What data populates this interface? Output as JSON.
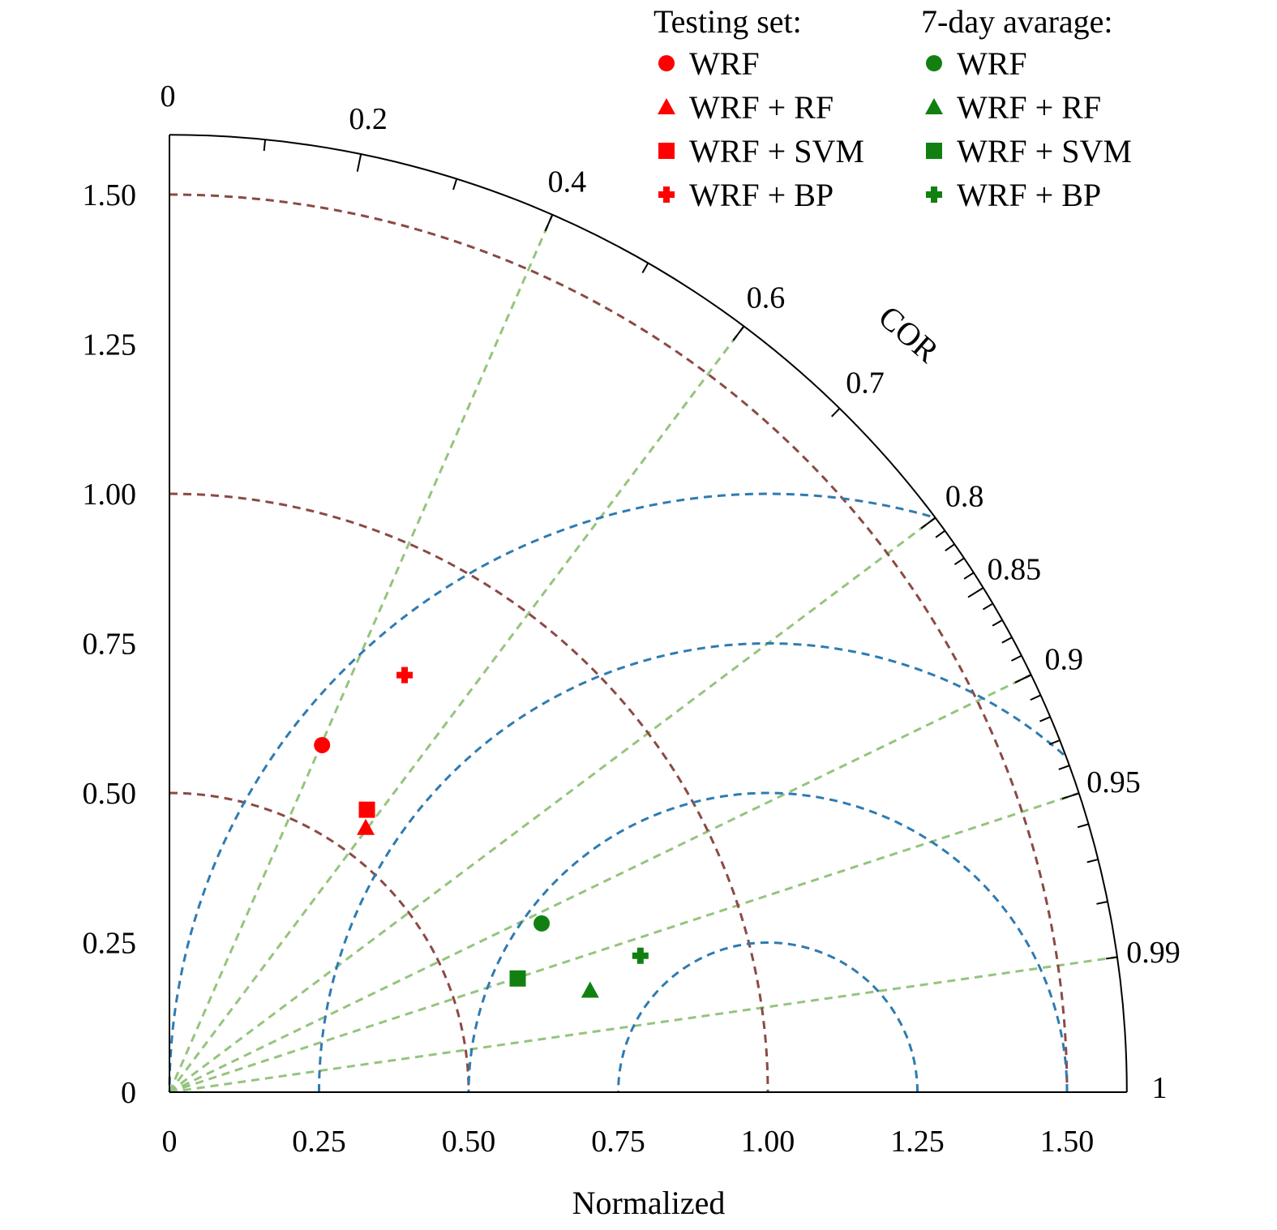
{
  "chart_data": {
    "type": "taylor_diagram",
    "xlabel": "Normalized",
    "arc_label": "COR",
    "std_range": [
      0,
      1.6
    ],
    "std_ticks": [
      "0",
      "0.25",
      "0.50",
      "0.75",
      "1.00",
      "1.25",
      "1.50"
    ],
    "std_tick_values": [
      0,
      0.25,
      0.5,
      0.75,
      1.0,
      1.25,
      1.5
    ],
    "cor_labels": [
      "0",
      "0.2",
      "0.4",
      "0.6",
      "0.7",
      "0.8",
      "0.85",
      "0.9",
      "0.95",
      "0.99",
      "1"
    ],
    "cor_label_values": [
      0,
      0.2,
      0.4,
      0.6,
      0.7,
      0.8,
      0.85,
      0.9,
      0.95,
      0.99,
      1.0
    ],
    "cor_gridlines": [
      0.4,
      0.6,
      0.8,
      0.9,
      0.95,
      0.99
    ],
    "std_gridlines": [
      0.5,
      1.0,
      1.5
    ],
    "rmsd_gridlines": [
      0.25,
      0.5,
      0.75,
      1.0
    ],
    "reference_std": 1.0,
    "colors": {
      "std_grid": "#8b4a44",
      "rmsd_grid": "#2f7bb0",
      "cor_grid": "#95c47e",
      "testing": "#ff0000",
      "avg7": "#118011"
    },
    "legend": {
      "placement": "top-right",
      "groups": [
        {
          "title": "Testing set:",
          "color": "#ff0000",
          "entries": [
            {
              "label": "WRF",
              "marker": "circle"
            },
            {
              "label": "WRF + RF",
              "marker": "triangle"
            },
            {
              "label": "WRF + SVM",
              "marker": "square"
            },
            {
              "label": "WRF + BP",
              "marker": "plus"
            }
          ]
        },
        {
          "title": "7-day avarage:",
          "color": "#118011",
          "entries": [
            {
              "label": "WRF",
              "marker": "circle"
            },
            {
              "label": "WRF + RF",
              "marker": "triangle"
            },
            {
              "label": "WRF + SVM",
              "marker": "square"
            },
            {
              "label": "WRF + BP",
              "marker": "plus"
            }
          ]
        }
      ]
    },
    "points": [
      {
        "group": "Testing set",
        "model": "WRF",
        "marker": "circle",
        "x": 0.255,
        "y": 0.58
      },
      {
        "group": "Testing set",
        "model": "WRF + RF",
        "marker": "triangle",
        "x": 0.328,
        "y": 0.442
      },
      {
        "group": "Testing set",
        "model": "WRF + SVM",
        "marker": "square",
        "x": 0.33,
        "y": 0.472
      },
      {
        "group": "Testing set",
        "model": "WRF + BP",
        "marker": "plus",
        "x": 0.393,
        "y": 0.697
      },
      {
        "group": "7-day avarage",
        "model": "WRF",
        "marker": "circle",
        "x": 0.622,
        "y": 0.282
      },
      {
        "group": "7-day avarage",
        "model": "WRF + RF",
        "marker": "triangle",
        "x": 0.703,
        "y": 0.17
      },
      {
        "group": "7-day avarage",
        "model": "WRF + SVM",
        "marker": "square",
        "x": 0.582,
        "y": 0.19
      },
      {
        "group": "7-day avarage",
        "model": "WRF + BP",
        "marker": "plus",
        "x": 0.787,
        "y": 0.228
      }
    ]
  }
}
